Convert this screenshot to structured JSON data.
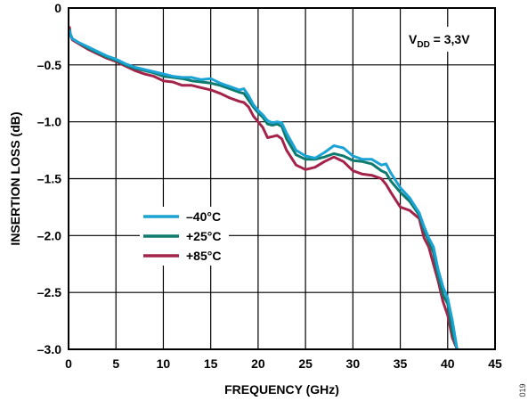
{
  "chart_data": {
    "type": "line",
    "xlabel": "FREQUENCY (GHz)",
    "ylabel": "INSERTION LOSS (dB)",
    "xlim": [
      0,
      45
    ],
    "ylim": [
      -3.0,
      0
    ],
    "xticks": [
      0,
      5,
      10,
      15,
      20,
      25,
      30,
      35,
      40,
      45
    ],
    "yticks": [
      0,
      -0.5,
      -1.0,
      -1.5,
      -2.0,
      -2.5,
      -3.0
    ],
    "xtick_labels": [
      "0",
      "5",
      "10",
      "15",
      "20",
      "25",
      "30",
      "35",
      "40",
      "45"
    ],
    "ytick_labels": [
      "0",
      "–0.5",
      "–1.0",
      "–1.5",
      "–2.0",
      "–2.5",
      "–3.0"
    ],
    "grid": true,
    "legend_position": "middle-left",
    "annotation": {
      "main": "V",
      "sub": "DD",
      "rest": " = 3,3V"
    },
    "figure_id": "019",
    "series": [
      {
        "name": "–40°C",
        "color": "#1aa3d4",
        "x": [
          0,
          0.1,
          0.2,
          0.4,
          1,
          2,
          3,
          4,
          5,
          6,
          7,
          8,
          9,
          10,
          11,
          12,
          13,
          14,
          15,
          16,
          17,
          18,
          18.5,
          19,
          19.5,
          20,
          20.5,
          21,
          21.5,
          22,
          22.5,
          23,
          24,
          25,
          26,
          27,
          28,
          29,
          30,
          31,
          32,
          33,
          33.5,
          34,
          35,
          36,
          37,
          37.5,
          38,
          38.5,
          39,
          39.5,
          40,
          40.5,
          41
        ],
        "y": [
          -0.25,
          -0.2,
          -0.24,
          -0.27,
          -0.3,
          -0.34,
          -0.38,
          -0.42,
          -0.45,
          -0.49,
          -0.52,
          -0.54,
          -0.56,
          -0.58,
          -0.6,
          -0.61,
          -0.61,
          -0.63,
          -0.62,
          -0.66,
          -0.69,
          -0.72,
          -0.71,
          -0.77,
          -0.85,
          -0.9,
          -0.94,
          -0.99,
          -1.01,
          -1.0,
          -1.01,
          -1.1,
          -1.25,
          -1.3,
          -1.32,
          -1.27,
          -1.21,
          -1.23,
          -1.3,
          -1.33,
          -1.33,
          -1.38,
          -1.37,
          -1.45,
          -1.58,
          -1.67,
          -1.8,
          -1.92,
          -2.02,
          -2.1,
          -2.3,
          -2.45,
          -2.55,
          -2.75,
          -3.0
        ]
      },
      {
        "name": "+25°C",
        "color": "#0f7a6e",
        "x": [
          0,
          0.1,
          0.2,
          0.4,
          1,
          2,
          3,
          4,
          5,
          6,
          7,
          8,
          9,
          10,
          11,
          12,
          13,
          14,
          15,
          16,
          17,
          18,
          18.5,
          19,
          19.5,
          20,
          20.5,
          21,
          21.5,
          22,
          22.5,
          23,
          24,
          25,
          26,
          27,
          28,
          29,
          30,
          31,
          32,
          33,
          33.5,
          34,
          35,
          36,
          37,
          37.5,
          38,
          38.5,
          39,
          39.5,
          40,
          40.5,
          41
        ],
        "y": [
          -0.23,
          -0.19,
          -0.23,
          -0.27,
          -0.3,
          -0.35,
          -0.39,
          -0.43,
          -0.46,
          -0.5,
          -0.53,
          -0.55,
          -0.57,
          -0.6,
          -0.61,
          -0.62,
          -0.64,
          -0.65,
          -0.66,
          -0.68,
          -0.71,
          -0.74,
          -0.75,
          -0.81,
          -0.87,
          -0.92,
          -0.96,
          -1.02,
          -1.03,
          -1.02,
          -1.04,
          -1.15,
          -1.29,
          -1.33,
          -1.33,
          -1.31,
          -1.28,
          -1.3,
          -1.34,
          -1.35,
          -1.37,
          -1.43,
          -1.45,
          -1.52,
          -1.62,
          -1.7,
          -1.82,
          -1.95,
          -2.05,
          -2.15,
          -2.35,
          -2.52,
          -2.6,
          -2.85,
          -3.0
        ]
      },
      {
        "name": "+85°C",
        "color": "#a4234a",
        "x": [
          0,
          0.1,
          0.2,
          0.4,
          1,
          2,
          3,
          4,
          5,
          6,
          7,
          8,
          9,
          10,
          11,
          12,
          13,
          14,
          15,
          16,
          17,
          18,
          18.5,
          19,
          19.5,
          20,
          20.5,
          21,
          21.5,
          22,
          22.5,
          23,
          24,
          25,
          26,
          27,
          28,
          29,
          30,
          31,
          32,
          33,
          33.5,
          34,
          35,
          36,
          37,
          37.5,
          38,
          38.5,
          39,
          39.5,
          40,
          40.5,
          41
        ],
        "y": [
          -0.21,
          -0.17,
          -0.24,
          -0.28,
          -0.31,
          -0.36,
          -0.4,
          -0.44,
          -0.47,
          -0.51,
          -0.55,
          -0.58,
          -0.6,
          -0.64,
          -0.65,
          -0.68,
          -0.68,
          -0.7,
          -0.72,
          -0.75,
          -0.79,
          -0.82,
          -0.83,
          -0.87,
          -0.95,
          -1.0,
          -1.05,
          -1.14,
          -1.13,
          -1.12,
          -1.15,
          -1.25,
          -1.38,
          -1.42,
          -1.4,
          -1.35,
          -1.31,
          -1.35,
          -1.43,
          -1.46,
          -1.47,
          -1.5,
          -1.55,
          -1.62,
          -1.75,
          -1.78,
          -1.85,
          -2.02,
          -2.1,
          -2.25,
          -2.4,
          -2.58,
          -2.7,
          -2.9,
          -3.0
        ]
      }
    ]
  }
}
